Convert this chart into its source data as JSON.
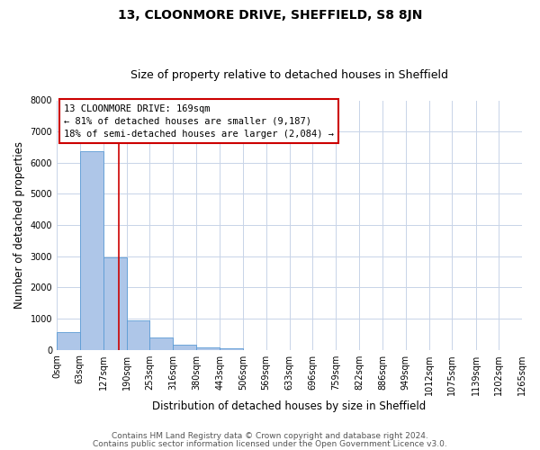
{
  "title": "13, CLOONMORE DRIVE, SHEFFIELD, S8 8JN",
  "subtitle": "Size of property relative to detached houses in Sheffield",
  "xlabel": "Distribution of detached houses by size in Sheffield",
  "ylabel": "Number of detached properties",
  "bar_edges": [
    0,
    63,
    127,
    190,
    253,
    316,
    380,
    443,
    506,
    569,
    633,
    696,
    759,
    822,
    886,
    949,
    1012,
    1075,
    1139,
    1202,
    1265
  ],
  "bar_heights": [
    560,
    6380,
    2960,
    950,
    390,
    160,
    80,
    50,
    0,
    0,
    0,
    0,
    0,
    0,
    0,
    0,
    0,
    0,
    0,
    0
  ],
  "bar_color": "#aec6e8",
  "bar_edgecolor": "#5b9bd5",
  "vline_x": 169,
  "vline_color": "#cc0000",
  "ylim": [
    0,
    8000
  ],
  "yticks": [
    0,
    1000,
    2000,
    3000,
    4000,
    5000,
    6000,
    7000,
    8000
  ],
  "xtick_labels": [
    "0sqm",
    "63sqm",
    "127sqm",
    "190sqm",
    "253sqm",
    "316sqm",
    "380sqm",
    "443sqm",
    "506sqm",
    "569sqm",
    "633sqm",
    "696sqm",
    "759sqm",
    "822sqm",
    "886sqm",
    "949sqm",
    "1012sqm",
    "1075sqm",
    "1139sqm",
    "1202sqm",
    "1265sqm"
  ],
  "annotation_title": "13 CLOONMORE DRIVE: 169sqm",
  "annotation_line1": "← 81% of detached houses are smaller (9,187)",
  "annotation_line2": "18% of semi-detached houses are larger (2,084) →",
  "annotation_box_color": "#ffffff",
  "annotation_box_edgecolor": "#cc0000",
  "footer1": "Contains HM Land Registry data © Crown copyright and database right 2024.",
  "footer2": "Contains public sector information licensed under the Open Government Licence v3.0.",
  "background_color": "#ffffff",
  "grid_color": "#c8d4e8",
  "title_fontsize": 10,
  "subtitle_fontsize": 9,
  "axis_label_fontsize": 8.5,
  "tick_fontsize": 7,
  "annotation_fontsize": 7.5,
  "footer_fontsize": 6.5
}
